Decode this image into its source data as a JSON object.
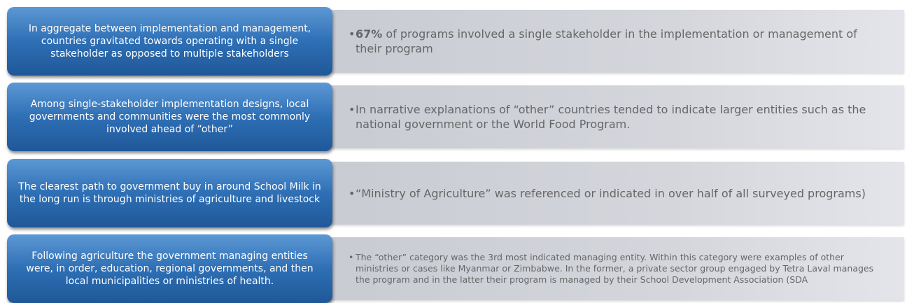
{
  "rows": [
    {
      "claim": "In aggregate between implementation and management, countries gravitated  towards operating with a single stakeholder as opposed to multiple stakeholders",
      "detail_lead": "67%",
      "detail": " of programs involved a single stakeholder in the  implementation or management of their program"
    },
    {
      "claim": "Among single-stakeholder implementation designs, local governments and communities were the most commonly involved ahead of “other”",
      "detail": "In narrative explanations of “other” countries tended to indicate larger entities such as the national government or the World Food Program."
    },
    {
      "claim": "The clearest path to government buy in around School Milk in the long run is through ministries of agriculture and livestock",
      "detail": "“Ministry of Agriculture” was referenced or indicated in over half of all surveyed programs)"
    },
    {
      "claim": "Following agriculture the government  managing entities were, in order, education, regional governments, and then local municipalities or ministries of health.",
      "detail": "The “other” category was the 3rd most indicated managing entity.  Within this category were examples of other ministries or cases like Myanmar or Zimbabwe.  In the former,  a private sector group engaged by  Tetra Laval  manages the program and  in the latter their program is managed by their School Development Association (SDA"
    }
  ]
}
